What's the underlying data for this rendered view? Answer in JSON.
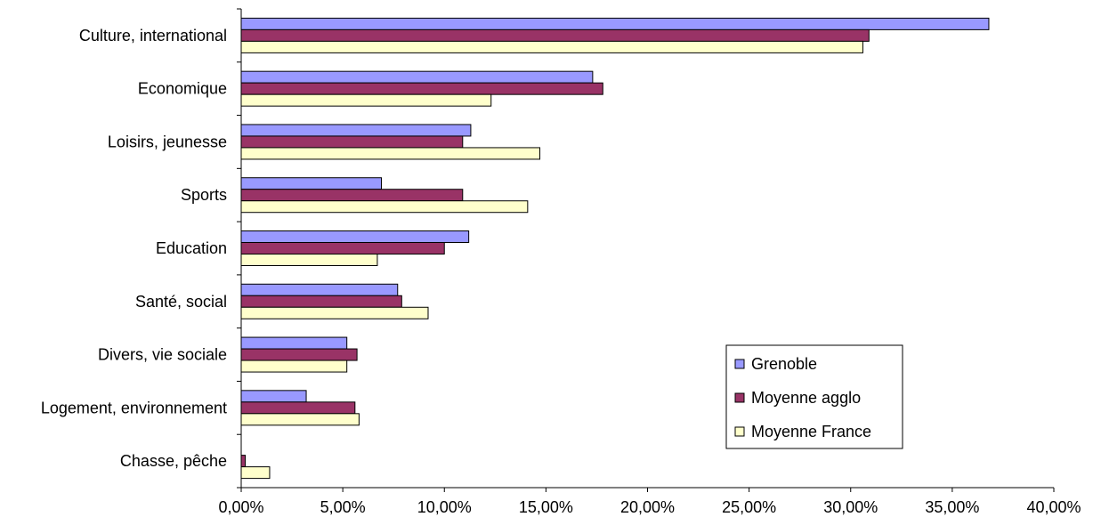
{
  "chart_data": {
    "type": "bar",
    "orientation": "horizontal",
    "categories": [
      "Culture, international",
      "Economique",
      "Loisirs, jeunesse",
      "Sports",
      "Education",
      "Santé, social",
      "Divers, vie sociale",
      "Logement, environnement",
      "Chasse, pêche"
    ],
    "series": [
      {
        "name": "Grenoble",
        "color": "#9999ff",
        "values": [
          36.8,
          17.3,
          11.3,
          6.9,
          11.2,
          7.7,
          5.2,
          3.2,
          0.0
        ]
      },
      {
        "name": "Moyenne agglo",
        "color": "#993366",
        "values": [
          30.9,
          17.8,
          10.9,
          10.9,
          10.0,
          7.9,
          5.7,
          5.6,
          0.2
        ]
      },
      {
        "name": "Moyenne France",
        "color": "#ffffcc",
        "values": [
          30.6,
          12.3,
          14.7,
          14.1,
          6.7,
          9.2,
          5.2,
          5.8,
          1.4
        ]
      }
    ],
    "xticks": [
      "0,00%",
      "5,00%",
      "10,00%",
      "15,00%",
      "20,00%",
      "25,00%",
      "30,00%",
      "35,00%",
      "40,00%"
    ],
    "xlim": [
      0,
      40
    ],
    "grid": false,
    "legend_position": "bottom-right"
  }
}
